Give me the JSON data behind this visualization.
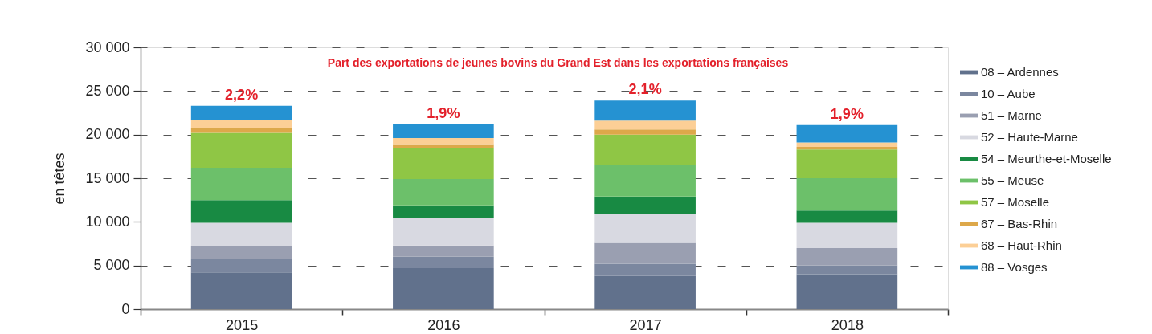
{
  "chart_data": {
    "type": "bar",
    "stacked": true,
    "categories": [
      "2015",
      "2016",
      "2017",
      "2018"
    ],
    "ylabel": "en têtes",
    "ylim": [
      0,
      30000
    ],
    "yticks": [
      0,
      {
        "value": 5000,
        "label": "5 000"
      },
      {
        "value": 10000,
        "label": "10 000"
      },
      {
        "value": 15000,
        "label": "15 000"
      },
      {
        "value": 20000,
        "label": "20 000"
      },
      {
        "value": 25000,
        "label": "25 000"
      },
      {
        "value": 30000,
        "label": "30 000"
      }
    ],
    "grid": "y",
    "legend": "right",
    "series": [
      {
        "name": "08 – Ardennes",
        "color": "#61718c",
        "values": [
          4200,
          4700,
          3800,
          4000
        ]
      },
      {
        "name": "10 – Aube",
        "color": "#7b879f",
        "values": [
          1500,
          1300,
          1400,
          1000
        ]
      },
      {
        "name": "51 – Marne",
        "color": "#9a9fb1",
        "values": [
          1500,
          1300,
          2400,
          2000
        ]
      },
      {
        "name": "52 – Haute-Marne",
        "color": "#d8d9e1",
        "values": [
          2700,
          3200,
          3300,
          2900
        ]
      },
      {
        "name": "54 – Meurthe-et-Moselle",
        "color": "#188a43",
        "values": [
          2600,
          1400,
          2000,
          1400
        ]
      },
      {
        "name": "55 – Meuse",
        "color": "#6cc06a",
        "values": [
          3700,
          3000,
          3600,
          3700
        ]
      },
      {
        "name": "57 – Moselle",
        "color": "#8fc645",
        "values": [
          4000,
          3600,
          3500,
          3300
        ]
      },
      {
        "name": "67 – Bas-Rhin",
        "color": "#dda84a",
        "values": [
          600,
          400,
          600,
          300
        ]
      },
      {
        "name": "68 – Haut-Rhin",
        "color": "#fccf96",
        "values": [
          900,
          700,
          1000,
          500
        ]
      },
      {
        "name": "88 – Vosges",
        "color": "#2592d2",
        "values": [
          1600,
          1600,
          2300,
          2000
        ]
      }
    ],
    "annotations": [
      "Part des exportations de jeunes bovins du Grand Est dans les exportations françaises",
      {
        "text": "2,2%",
        "x": "2015",
        "y": 23300
      },
      {
        "text": "1,9%",
        "x": "2016",
        "y": 21200
      },
      {
        "text": "2,1%",
        "x": "2017",
        "y": 23900
      },
      {
        "text": "1,9%",
        "x": "2018",
        "y": 21100
      }
    ]
  }
}
